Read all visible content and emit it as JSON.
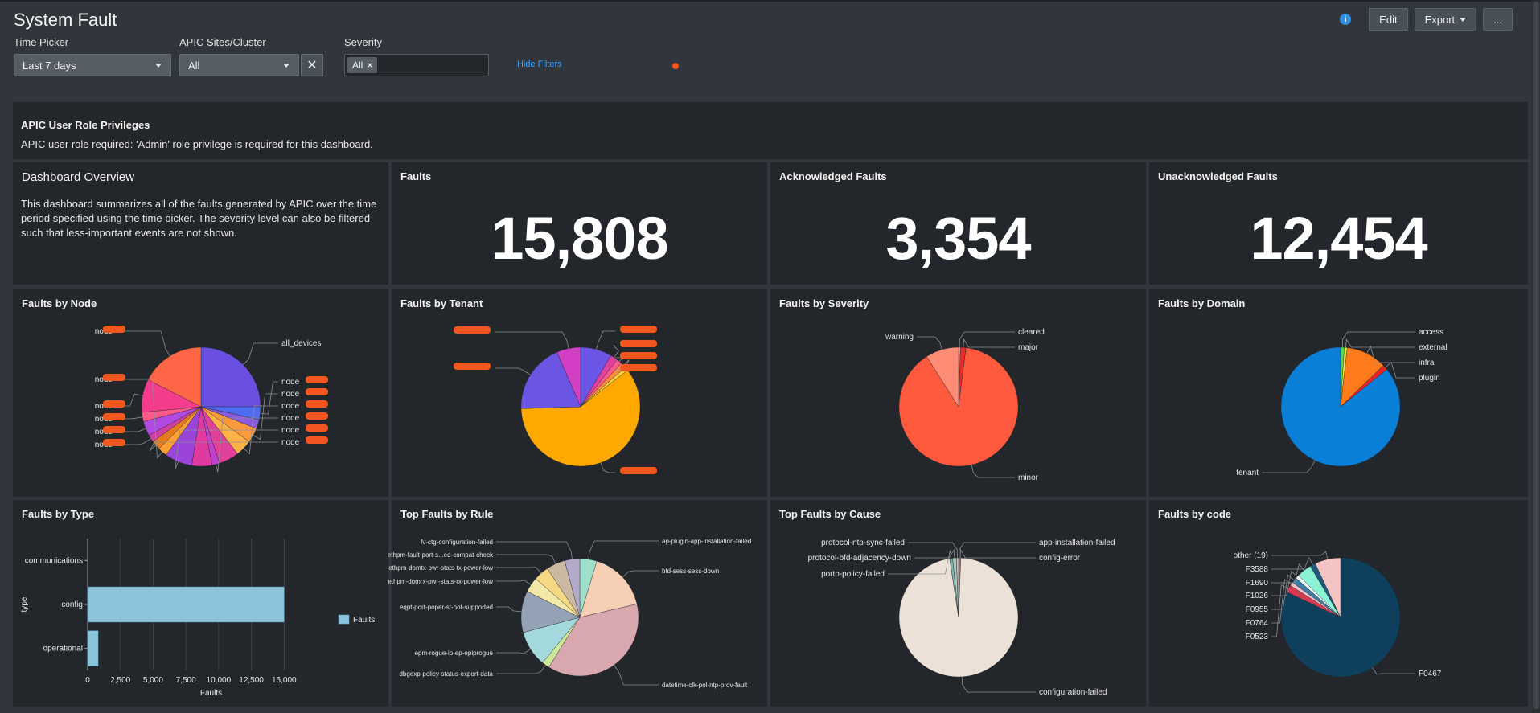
{
  "header": {
    "title": "System Fault",
    "info_icon": "i",
    "edit_label": "Edit",
    "export_label": "Export",
    "more_label": "..."
  },
  "filters": {
    "time_picker": {
      "label": "Time Picker",
      "value": "Last 7 days"
    },
    "apic_sites": {
      "label": "APIC Sites/Cluster",
      "value": "All"
    },
    "severity": {
      "label": "Severity",
      "chip": "All"
    },
    "hide_filters_label": "Hide Filters"
  },
  "roles_panel": {
    "title": "APIC User Role Privileges",
    "text": "APIC user role required: 'Admin' role privilege is required for this dashboard."
  },
  "overview_panel": {
    "title": "Dashboard Overview",
    "text": "This dashboard summarizes all of the faults generated by APIC over the time period specified using the time picker. The severity level can also be filtered such that less-important events are not shown."
  },
  "kpis": [
    {
      "title": "Faults",
      "value": "15,808"
    },
    {
      "title": "Acknowledged Faults",
      "value": "3,354"
    },
    {
      "title": "Unacknowledged Faults",
      "value": "12,454"
    }
  ],
  "panels": {
    "node": {
      "title": "Faults by Node"
    },
    "tenant": {
      "title": "Faults by Tenant"
    },
    "severity": {
      "title": "Faults by Severity"
    },
    "domain": {
      "title": "Faults by Domain"
    },
    "type": {
      "title": "Faults by Type"
    },
    "rule": {
      "title": "Top Faults by Rule"
    },
    "cause": {
      "title": "Top Faults by Cause"
    },
    "code": {
      "title": "Faults by code"
    }
  },
  "chart_data": [
    {
      "id": "node",
      "type": "pie",
      "title": "Faults by Node",
      "labels": [
        "all_devices",
        "node",
        "node",
        "node",
        "node",
        "node",
        "node",
        "node",
        "node",
        "node",
        "node",
        "node",
        "node",
        "node",
        "node",
        "node"
      ],
      "values": [
        25.0,
        3.5,
        2.5,
        4.0,
        4.5,
        5.5,
        2.0,
        5.5,
        7.5,
        2.5,
        2.5,
        2.0,
        4.0,
        2.5,
        9.0,
        17.5
      ],
      "colors": [
        "#6b4fe0",
        "#4f6df0",
        "#8b5ae0",
        "#ff9a3c",
        "#ffb347",
        "#e0409a",
        "#c040d0",
        "#e03aa0",
        "#9a45d8",
        "#ffa030",
        "#e67a1e",
        "#d040a0",
        "#b04ae0",
        "#ff5a8a",
        "#f53c8c",
        "#ff6648"
      ]
    },
    {
      "id": "tenant",
      "type": "pie",
      "title": "Faults by Tenant",
      "labels": [
        "",
        "",
        "",
        "",
        "",
        "",
        "",
        ""
      ],
      "values": [
        8.5,
        2.0,
        1.5,
        1.5,
        1.0,
        60.0,
        19.0,
        6.5
      ],
      "colors": [
        "#6d55e8",
        "#e040a0",
        "#ff5a8a",
        "#ff8c3a",
        "#f7d23c",
        "#ffa800",
        "#6b55e2",
        "#d23ec4"
      ]
    },
    {
      "id": "severity",
      "type": "pie",
      "title": "Faults by Severity",
      "labels": [
        "cleared",
        "major",
        "minor",
        "warning"
      ],
      "values": [
        0.5,
        1.5,
        89.0,
        9.0
      ],
      "colors": [
        "#ff9a7a",
        "#e62a2a",
        "#ff5a3d",
        "#ff8c74"
      ]
    },
    {
      "id": "domain",
      "type": "pie",
      "title": "Faults by Domain",
      "labels": [
        "access",
        "external",
        "infra",
        "plugin",
        "tenant"
      ],
      "values": [
        1.0,
        0.8,
        11.0,
        1.4,
        85.8
      ],
      "colors": [
        "#5ad65a",
        "#f2e830",
        "#ff7a1a",
        "#e8232a",
        "#0a7fd8"
      ]
    },
    {
      "id": "type",
      "type": "bar",
      "orientation": "horizontal",
      "title": "Faults by Type",
      "categories": [
        "communications",
        "config",
        "operational"
      ],
      "series": [
        {
          "name": "Faults",
          "values": [
            0,
            15000,
            800
          ]
        }
      ],
      "xlabel": "Faults",
      "ylabel": "type",
      "xlim": [
        0,
        17500
      ],
      "ticks": [
        0,
        2500,
        5000,
        7500,
        10000,
        12500,
        15000
      ],
      "tick_labels": [
        "0",
        "2,500",
        "5,000",
        "7,500",
        "10,000",
        "12,500",
        "15,000"
      ],
      "legend": "right",
      "grid": true
    },
    {
      "id": "rule",
      "type": "pie",
      "title": "Top Faults by Rule",
      "labels": [
        "ap-plugin-app-installation-failed",
        "bfd-sess-sess-down",
        "datetime-clk-pol-ntp-prov-fault",
        "dbgexp-policy-status-export-data",
        "epm-rogue-ip-ep-epiprogue",
        "eqpt-port-poper-st-not-supported",
        "ethpm-domrx-pwr-stats-rx-power-low",
        "ethpm-domtx-pwr-stats-tx-power-low",
        "ethpm-fault-port-s...ed-compat-check",
        "fv-ctg-configuration-failed"
      ],
      "values": [
        4.5,
        16.0,
        36.0,
        2.0,
        9.5,
        11.0,
        4.0,
        4.0,
        5.0,
        4.0
      ],
      "colors": [
        "#9ee0cc",
        "#f7cfb4",
        "#d9a7ae",
        "#cbe89a",
        "#a3d9dc",
        "#93a3b5",
        "#f2e8a8",
        "#f5d882",
        "#cbb9a3",
        "#b3a9c9"
      ]
    },
    {
      "id": "cause",
      "type": "pie",
      "title": "Top Faults by Cause",
      "labels": [
        "app-installation-failed",
        "config-error",
        "configuration-failed",
        "portp-policy-failed",
        "protocol-bfd-adjacency-down",
        "protocol-ntp-sync-failed"
      ],
      "values": [
        0.3,
        0.3,
        97.0,
        0.8,
        1.0,
        0.6
      ],
      "colors": [
        "#d8a7ae",
        "#a3b39e",
        "#ece1d6",
        "#7fb5a8",
        "#a8c8c2",
        "#d0b9a8"
      ]
    },
    {
      "id": "code",
      "type": "pie",
      "title": "Faults by code",
      "labels": [
        "F0467",
        "F0523",
        "F0764",
        "F0955",
        "F1026",
        "F1690",
        "F3588",
        "other (19)"
      ],
      "values": [
        82.0,
        2.0,
        1.0,
        1.5,
        1.0,
        4.0,
        1.5,
        7.0
      ],
      "colors": [
        "#0e3f5c",
        "#d43a52",
        "#f2c2c6",
        "#3f7ea8",
        "#eef8f4",
        "#8cf2d6",
        "#1f5a7a",
        "#f4c3c3"
      ]
    }
  ]
}
